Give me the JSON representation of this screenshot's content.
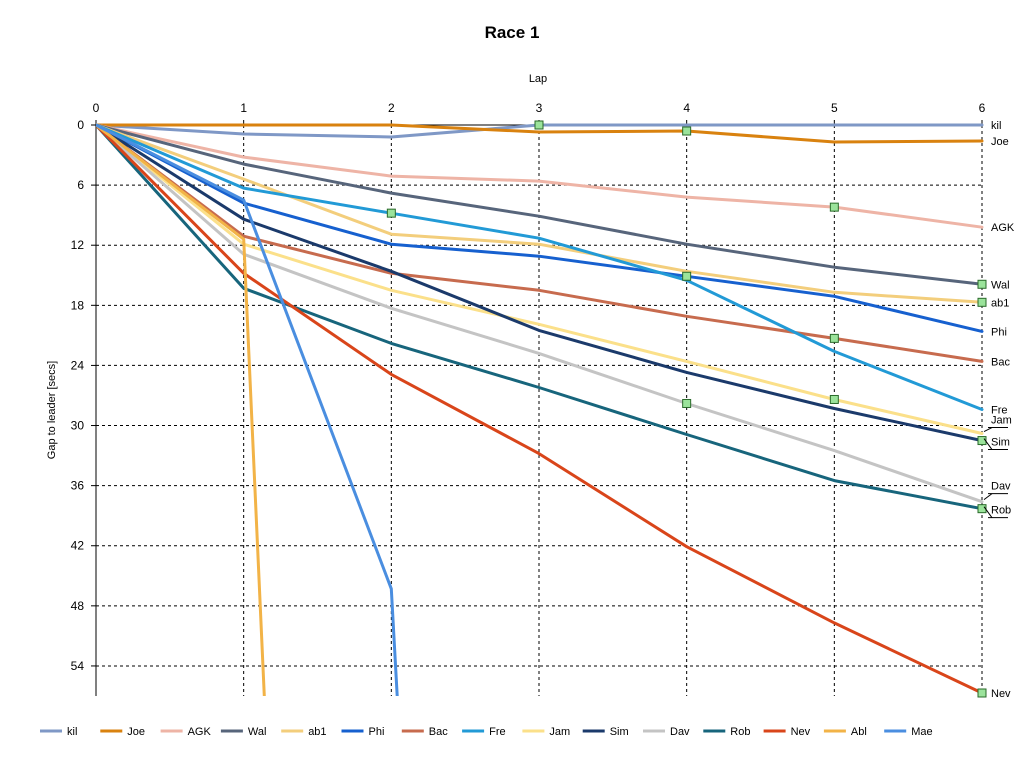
{
  "chart_data": {
    "type": "line",
    "title": "Race 1",
    "xlabel": "Lap",
    "ylabel": "Gap to leader [secs]",
    "x": [
      0,
      1,
      2,
      3,
      4,
      5,
      6
    ],
    "xlim": [
      0,
      6
    ],
    "ylim": [
      0,
      57
    ],
    "y_inverted": true,
    "xticks": [
      "0",
      "1",
      "2",
      "3",
      "4",
      "5",
      "6"
    ],
    "yticks": [
      "0",
      "6",
      "12",
      "18",
      "24",
      "30",
      "36",
      "42",
      "48",
      "54"
    ],
    "ytick_values": [
      0,
      6,
      12,
      18,
      24,
      30,
      36,
      42,
      48,
      54
    ],
    "x_axis_position": "top",
    "grid": true,
    "legend_position": "bottom",
    "series": [
      {
        "name": "kil",
        "color": "#7f98c6",
        "values": [
          0,
          0.9,
          1.2,
          0,
          0,
          0,
          0
        ],
        "end_label": "kil"
      },
      {
        "name": "Joe",
        "color": "#d9820f",
        "values": [
          0,
          0,
          0,
          0.7,
          0.6,
          1.7,
          1.6
        ],
        "end_label": "Joe"
      },
      {
        "name": "AGK",
        "color": "#eeb4a6",
        "values": [
          0,
          3.2,
          5.1,
          5.6,
          7.2,
          8.2,
          10.2
        ],
        "end_label": "AGK"
      },
      {
        "name": "Wal",
        "color": "#57657b",
        "values": [
          0,
          3.9,
          6.8,
          9.1,
          11.9,
          14.2,
          15.9
        ],
        "end_label": "Wal"
      },
      {
        "name": "ab1",
        "color": "#f3ce7c",
        "values": [
          0,
          5.4,
          10.9,
          11.9,
          14.6,
          16.7,
          17.7
        ],
        "end_label": "ab1"
      },
      {
        "name": "Phi",
        "color": "#1660cf",
        "values": [
          0,
          7.8,
          11.9,
          13.1,
          15.1,
          17.1,
          20.6
        ],
        "end_label": "Phi"
      },
      {
        "name": "Bac",
        "color": "#c76b4e",
        "values": [
          0,
          11.1,
          14.8,
          16.5,
          19.1,
          21.3,
          23.6
        ],
        "end_label": "Bac"
      },
      {
        "name": "Fre",
        "color": "#229ad6",
        "values": [
          0,
          6.3,
          8.8,
          11.3,
          15.5,
          22.6,
          28.4
        ],
        "end_label": "Fre"
      },
      {
        "name": "Jam",
        "color": "#fbe08a",
        "values": [
          0,
          11.9,
          16.5,
          19.9,
          23.6,
          27.4,
          30.8
        ],
        "end_label": "Jam"
      },
      {
        "name": "Sim",
        "color": "#1b3a6b",
        "values": [
          0,
          9.4,
          14.6,
          20.5,
          24.7,
          28.3,
          31.5
        ],
        "end_label": "Sim"
      },
      {
        "name": "Dav",
        "color": "#c4c4c4",
        "values": [
          0,
          12.9,
          18.3,
          22.8,
          27.8,
          32.5,
          37.6
        ],
        "end_label": "Dav"
      },
      {
        "name": "Rob",
        "color": "#17657c",
        "values": [
          0,
          16.3,
          21.8,
          26.2,
          30.9,
          35.5,
          38.3
        ],
        "end_label": "Rob"
      },
      {
        "name": "Nev",
        "color": "#d9451a",
        "values": [
          0,
          14.8,
          24.9,
          32.8,
          42.1,
          49.7,
          56.7
        ],
        "end_label": "Nev"
      },
      {
        "name": "Abl",
        "color": "#f2b347",
        "x": [
          0,
          1,
          1.14
        ],
        "values": [
          0,
          11.4,
          57
        ],
        "end_label": ""
      },
      {
        "name": "Mae",
        "color": "#4a8ee0",
        "x": [
          0,
          1,
          2,
          2.04
        ],
        "values": [
          0,
          7.5,
          46.3,
          57
        ],
        "end_label": ""
      }
    ],
    "markers": [
      {
        "series": "kil",
        "x": 3,
        "y": 0
      },
      {
        "series": "Joe",
        "x": 4,
        "y": 0.6
      },
      {
        "series": "Fre",
        "x": 2,
        "y": 8.8
      },
      {
        "series": "Phi",
        "x": 4,
        "y": 15.1
      },
      {
        "series": "Dav",
        "x": 4,
        "y": 27.8
      },
      {
        "series": "AGK",
        "x": 5,
        "y": 8.2
      },
      {
        "series": "Bac",
        "x": 5,
        "y": 21.3
      },
      {
        "series": "Jam",
        "x": 5,
        "y": 27.4
      },
      {
        "series": "Wal",
        "x": 6,
        "y": 15.9
      },
      {
        "series": "ab1",
        "x": 6,
        "y": 17.7
      },
      {
        "series": "Sim",
        "x": 6,
        "y": 31.5
      },
      {
        "series": "Rob",
        "x": 6,
        "y": 38.3
      },
      {
        "series": "Nev",
        "x": 6,
        "y": 56.7
      }
    ]
  }
}
